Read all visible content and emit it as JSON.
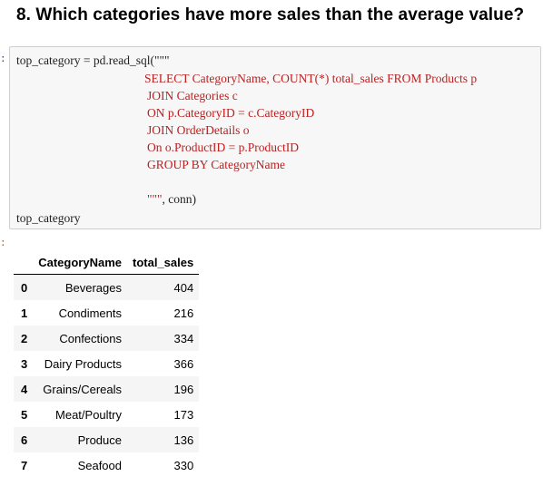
{
  "heading": "8. Which categories have more sales than the average value?",
  "code_cell": {
    "lines": [
      {
        "text": "top_category = pd.read_sql(\"\"\"",
        "color": "black"
      },
      {
        "text": "SELECT CategoryName, COUNT(*) total_sales FROM Products p",
        "color": "red"
      },
      {
        "text": "JOIN Categories c",
        "color": "red"
      },
      {
        "text": "ON p.CategoryID = c.CategoryID",
        "color": "red"
      },
      {
        "text": "JOIN OrderDetails o",
        "color": "red"
      },
      {
        "text": "On o.ProductID = p.ProductID",
        "color": "red"
      },
      {
        "text": "GROUP BY CategoryName",
        "color": "red"
      },
      {
        "text": "",
        "color": "red"
      },
      {
        "text": "\"\"\", conn)",
        "color": "mixed"
      },
      {
        "text": "top_category",
        "color": "black"
      }
    ]
  },
  "output_table": {
    "columns": [
      "",
      "CategoryName",
      "total_sales"
    ],
    "rows": [
      {
        "index": "0",
        "CategoryName": "Beverages",
        "total_sales": "404"
      },
      {
        "index": "1",
        "CategoryName": "Condiments",
        "total_sales": "216"
      },
      {
        "index": "2",
        "CategoryName": "Confections",
        "total_sales": "334"
      },
      {
        "index": "3",
        "CategoryName": "Dairy Products",
        "total_sales": "366"
      },
      {
        "index": "4",
        "CategoryName": "Grains/Cereals",
        "total_sales": "196"
      },
      {
        "index": "5",
        "CategoryName": "Meat/Poultry",
        "total_sales": "173"
      },
      {
        "index": "6",
        "CategoryName": "Produce",
        "total_sales": "136"
      },
      {
        "index": "7",
        "CategoryName": "Seafood",
        "total_sales": "330"
      }
    ]
  }
}
